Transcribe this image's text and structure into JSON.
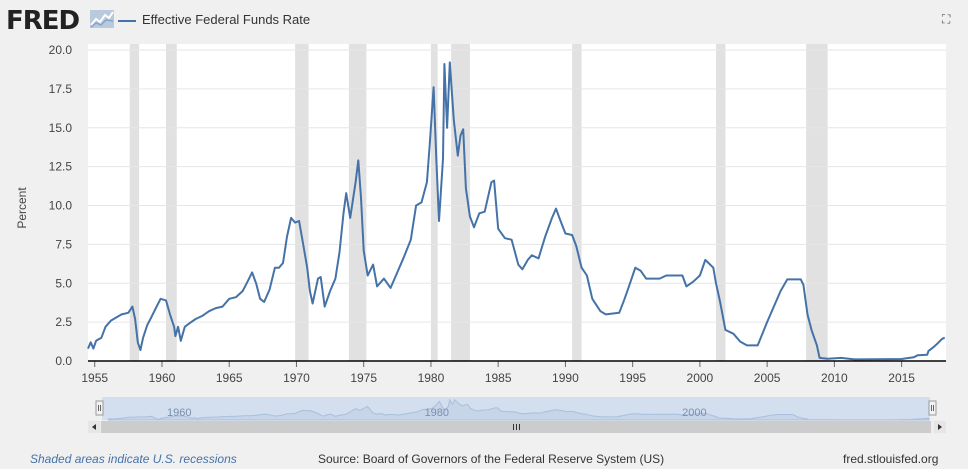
{
  "header": {
    "logo_text": "FRED",
    "series_title": "Effective Federal Funds Rate",
    "fullscreen_icon": "fullscreen-icon"
  },
  "footer": {
    "note": "Shaded areas indicate U.S. recessions",
    "source": "Source: Board of Governors of the Federal Reserve System (US)",
    "url": "fred.stlouisfed.org"
  },
  "colors": {
    "series": "#4572a7",
    "recession": "#e1e1e1",
    "grid": "#e6e6e6",
    "navigator_fill": "#c7d5e8",
    "navigator_mask": "#b6c8e3",
    "scrollbar": "#e4e4e4"
  },
  "chart_data": {
    "type": "line",
    "title": "Effective Federal Funds Rate",
    "xlabel": "",
    "ylabel": "Percent",
    "xlim": [
      1954.5,
      2018.3
    ],
    "ylim": [
      0,
      20
    ],
    "yticks": [
      "0.0",
      "2.5",
      "5.0",
      "7.5",
      "10.0",
      "12.5",
      "15.0",
      "17.5",
      "20.0"
    ],
    "xticks": [
      "1955",
      "1960",
      "1965",
      "1970",
      "1975",
      "1980",
      "1985",
      "1990",
      "1995",
      "2000",
      "2005",
      "2010",
      "2015"
    ],
    "grid": true,
    "legend": "top-left",
    "recessions": [
      [
        1957.6,
        1958.3
      ],
      [
        1960.3,
        1961.1
      ],
      [
        1969.9,
        1970.9
      ],
      [
        1973.9,
        1975.2
      ],
      [
        1980.0,
        1980.5
      ],
      [
        1981.5,
        1982.9
      ],
      [
        1990.5,
        1991.2
      ],
      [
        2001.2,
        2001.9
      ],
      [
        2007.9,
        2009.5
      ]
    ],
    "series": [
      {
        "name": "Effective Federal Funds Rate",
        "points": [
          [
            1954.5,
            0.8
          ],
          [
            1954.7,
            1.2
          ],
          [
            1954.9,
            0.8
          ],
          [
            1955.1,
            1.3
          ],
          [
            1955.5,
            1.5
          ],
          [
            1955.8,
            2.2
          ],
          [
            1956.2,
            2.6
          ],
          [
            1956.6,
            2.8
          ],
          [
            1957.0,
            3.0
          ],
          [
            1957.5,
            3.1
          ],
          [
            1957.8,
            3.5
          ],
          [
            1958.0,
            2.7
          ],
          [
            1958.2,
            1.2
          ],
          [
            1958.4,
            0.7
          ],
          [
            1958.6,
            1.5
          ],
          [
            1958.9,
            2.3
          ],
          [
            1959.2,
            2.8
          ],
          [
            1959.6,
            3.5
          ],
          [
            1959.9,
            4.0
          ],
          [
            1960.3,
            3.9
          ],
          [
            1960.6,
            3.0
          ],
          [
            1960.9,
            2.2
          ],
          [
            1961.0,
            1.6
          ],
          [
            1961.2,
            2.2
          ],
          [
            1961.4,
            1.3
          ],
          [
            1961.7,
            2.2
          ],
          [
            1962.0,
            2.4
          ],
          [
            1962.5,
            2.7
          ],
          [
            1963.0,
            2.9
          ],
          [
            1963.5,
            3.2
          ],
          [
            1964.0,
            3.4
          ],
          [
            1964.5,
            3.5
          ],
          [
            1965.0,
            4.0
          ],
          [
            1965.5,
            4.1
          ],
          [
            1966.0,
            4.5
          ],
          [
            1966.3,
            5.0
          ],
          [
            1966.7,
            5.7
          ],
          [
            1967.0,
            5.0
          ],
          [
            1967.3,
            4.0
          ],
          [
            1967.6,
            3.8
          ],
          [
            1968.0,
            4.6
          ],
          [
            1968.4,
            6.0
          ],
          [
            1968.7,
            6.0
          ],
          [
            1969.0,
            6.3
          ],
          [
            1969.3,
            8.0
          ],
          [
            1969.6,
            9.2
          ],
          [
            1969.9,
            8.9
          ],
          [
            1970.2,
            9.0
          ],
          [
            1970.5,
            7.5
          ],
          [
            1970.8,
            6.0
          ],
          [
            1971.0,
            4.5
          ],
          [
            1971.2,
            3.7
          ],
          [
            1971.6,
            5.3
          ],
          [
            1971.8,
            5.4
          ],
          [
            1972.1,
            3.5
          ],
          [
            1972.5,
            4.5
          ],
          [
            1972.9,
            5.3
          ],
          [
            1973.2,
            7.0
          ],
          [
            1973.5,
            9.5
          ],
          [
            1973.7,
            10.8
          ],
          [
            1974.0,
            9.2
          ],
          [
            1974.4,
            11.5
          ],
          [
            1974.6,
            12.9
          ],
          [
            1974.8,
            10.5
          ],
          [
            1975.0,
            7.1
          ],
          [
            1975.3,
            5.5
          ],
          [
            1975.7,
            6.2
          ],
          [
            1976.0,
            4.8
          ],
          [
            1976.5,
            5.3
          ],
          [
            1977.0,
            4.7
          ],
          [
            1977.5,
            5.7
          ],
          [
            1978.0,
            6.7
          ],
          [
            1978.5,
            7.8
          ],
          [
            1978.9,
            10.0
          ],
          [
            1979.3,
            10.2
          ],
          [
            1979.7,
            11.5
          ],
          [
            1979.9,
            13.8
          ],
          [
            1980.2,
            17.6
          ],
          [
            1980.4,
            13.0
          ],
          [
            1980.6,
            9.0
          ],
          [
            1980.9,
            13.0
          ],
          [
            1981.0,
            19.1
          ],
          [
            1981.2,
            15.0
          ],
          [
            1981.4,
            19.2
          ],
          [
            1981.7,
            15.5
          ],
          [
            1982.0,
            13.2
          ],
          [
            1982.2,
            14.5
          ],
          [
            1982.4,
            14.9
          ],
          [
            1982.6,
            11.1
          ],
          [
            1982.9,
            9.3
          ],
          [
            1983.2,
            8.6
          ],
          [
            1983.6,
            9.5
          ],
          [
            1984.0,
            9.6
          ],
          [
            1984.5,
            11.5
          ],
          [
            1984.7,
            11.6
          ],
          [
            1985.0,
            8.5
          ],
          [
            1985.5,
            7.9
          ],
          [
            1986.0,
            7.8
          ],
          [
            1986.5,
            6.2
          ],
          [
            1986.8,
            5.9
          ],
          [
            1987.2,
            6.5
          ],
          [
            1987.5,
            6.8
          ],
          [
            1988.0,
            6.6
          ],
          [
            1988.5,
            8.0
          ],
          [
            1989.0,
            9.2
          ],
          [
            1989.3,
            9.8
          ],
          [
            1989.6,
            9.1
          ],
          [
            1990.0,
            8.2
          ],
          [
            1990.5,
            8.1
          ],
          [
            1990.8,
            7.4
          ],
          [
            1991.2,
            6.0
          ],
          [
            1991.6,
            5.5
          ],
          [
            1992.0,
            4.0
          ],
          [
            1992.6,
            3.2
          ],
          [
            1993.0,
            3.0
          ],
          [
            1994.0,
            3.1
          ],
          [
            1994.4,
            4.0
          ],
          [
            1994.8,
            5.0
          ],
          [
            1995.2,
            6.0
          ],
          [
            1995.6,
            5.8
          ],
          [
            1996.0,
            5.3
          ],
          [
            1996.5,
            5.3
          ],
          [
            1997.0,
            5.3
          ],
          [
            1997.5,
            5.5
          ],
          [
            1998.0,
            5.5
          ],
          [
            1998.7,
            5.5
          ],
          [
            1999.0,
            4.8
          ],
          [
            1999.5,
            5.1
          ],
          [
            2000.0,
            5.5
          ],
          [
            2000.4,
            6.5
          ],
          [
            2001.0,
            6.0
          ],
          [
            2001.2,
            5.0
          ],
          [
            2001.5,
            3.8
          ],
          [
            2001.9,
            2.0
          ],
          [
            2002.5,
            1.75
          ],
          [
            2003.0,
            1.25
          ],
          [
            2003.5,
            1.0
          ],
          [
            2004.3,
            1.0
          ],
          [
            2005.0,
            2.5
          ],
          [
            2006.0,
            4.5
          ],
          [
            2006.5,
            5.25
          ],
          [
            2007.5,
            5.25
          ],
          [
            2007.7,
            4.9
          ],
          [
            2008.0,
            3.0
          ],
          [
            2008.3,
            2.0
          ],
          [
            2008.7,
            1.0
          ],
          [
            2008.9,
            0.2
          ],
          [
            2009.5,
            0.15
          ],
          [
            2010.5,
            0.2
          ],
          [
            2011.5,
            0.1
          ],
          [
            2013.0,
            0.11
          ],
          [
            2015.0,
            0.13
          ],
          [
            2015.9,
            0.24
          ],
          [
            2016.2,
            0.37
          ],
          [
            2016.9,
            0.4
          ],
          [
            2017.0,
            0.65
          ],
          [
            2017.4,
            0.91
          ],
          [
            2017.7,
            1.15
          ],
          [
            2018.0,
            1.42
          ],
          [
            2018.2,
            1.5
          ]
        ]
      }
    ],
    "navigator_ticks": [
      "1960",
      "1980",
      "2000"
    ],
    "navigator_xlim": [
      1954,
      2018.3
    ],
    "navigator_ylim": [
      0,
      20
    ]
  }
}
